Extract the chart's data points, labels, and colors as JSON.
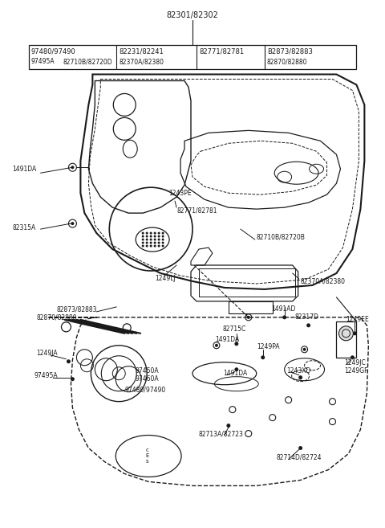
{
  "bg_color": "#ffffff",
  "line_color": "#1a1a1a",
  "fig_width": 4.8,
  "fig_height": 6.57,
  "dpi": 100,
  "top_label": "82301/82302",
  "header_rows": [
    [
      "97480/97490",
      "82231/82241",
      "82771/82781",
      "B2873/82883"
    ],
    [
      "97495A   82710B/82720D",
      "82370A/82380",
      "",
      "82870/82880"
    ]
  ]
}
